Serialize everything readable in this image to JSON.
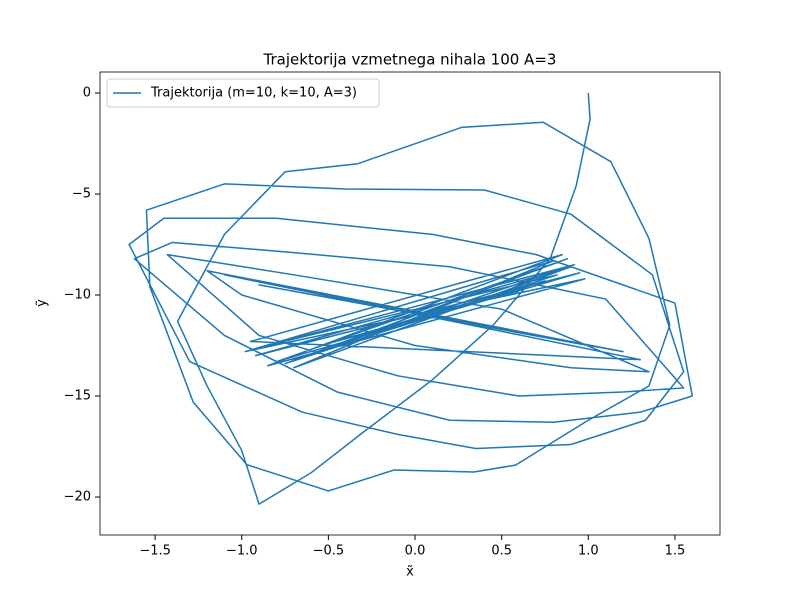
{
  "chart_data": {
    "type": "line",
    "title": "Trajektorija vzmetnega nihala 100 A=3",
    "xlabel": "x̃",
    "ylabel": "ỹ",
    "xlim": [
      -1.818,
      1.76
    ],
    "ylim": [
      -21.88,
      1.04
    ],
    "xticks": [
      {
        "value": -1.5,
        "label": "−1.5"
      },
      {
        "value": -1.0,
        "label": "−1.0"
      },
      {
        "value": -0.5,
        "label": "−0.5"
      },
      {
        "value": 0,
        "label": "0.0"
      },
      {
        "value": 0.5,
        "label": "0.5"
      },
      {
        "value": 1.0,
        "label": "1.0"
      },
      {
        "value": 1.5,
        "label": "1.5"
      }
    ],
    "yticks": [
      0,
      {
        "value": -5,
        "label": "−5"
      },
      {
        "value": -10,
        "label": "−10"
      },
      {
        "value": -15,
        "label": "−15"
      },
      {
        "value": -20,
        "label": "−20"
      }
    ],
    "legend": "upper left",
    "x": [
      1.0,
      1.01,
      0.93,
      0.78,
      0.45,
      0.1,
      -0.3,
      -0.6,
      -0.9,
      -1.0,
      -1.2,
      -1.37,
      -1.1,
      -0.75,
      -0.33,
      0.27,
      0.74,
      1.13,
      1.35,
      1.47,
      1.35,
      1.0,
      0.58,
      0.34,
      -0.12,
      -0.5,
      -0.97,
      -1.28,
      -1.53,
      -1.55,
      -1.1,
      -0.4,
      0.4,
      0.9,
      1.37,
      1.55,
      1.33,
      0.9,
      0.35,
      -0.1,
      -0.65,
      -1.3,
      -1.65,
      -1.45,
      -0.8,
      0.1,
      0.7,
      1.5,
      1.6,
      1.3,
      0.8,
      0.2,
      -0.45,
      -1.1,
      -1.62,
      -1.4,
      -0.7,
      0.2,
      1.1,
      1.55,
      1.2,
      0.6,
      -0.1,
      -0.9,
      -1.43,
      -0.7,
      0.5,
      1.35,
      0.9,
      0.0,
      -1.0,
      -1.2,
      1.2,
      -0.9,
      1.0,
      -1.1,
      1.3,
      -0.95,
      0.85,
      -0.85,
      0.98,
      -0.98,
      0.8,
      -0.7,
      0.9,
      -0.92,
      0.95,
      -0.8,
      0.88,
      -0.75,
      0.82,
      -0.9,
      0.92,
      -0.7,
      0.75,
      -0.5,
      0.6
    ],
    "series": [
      {
        "name": "Trajektorija (m=10, k=10, A=3)",
        "color": "#1f77b4",
        "values": [
          0,
          -1.3,
          -4.6,
          -8.2,
          -11.5,
          -14.2,
          -16.8,
          -18.8,
          -20.35,
          -17.7,
          -14.5,
          -11.3,
          -7.0,
          -3.9,
          -3.5,
          -1.7,
          -1.45,
          -3.4,
          -7.2,
          -11.5,
          -14.5,
          -16.2,
          -18.42,
          -18.76,
          -18.66,
          -19.7,
          -18.4,
          -15.3,
          -9.6,
          -5.8,
          -4.5,
          -4.75,
          -4.8,
          -6.0,
          -9.0,
          -13.8,
          -16.2,
          -17.4,
          -17.6,
          -16.9,
          -15.8,
          -13.3,
          -7.5,
          -6.2,
          -6.2,
          -7.0,
          -8.0,
          -10.4,
          -15.0,
          -15.8,
          -16.3,
          -16.2,
          -14.8,
          -12.0,
          -8.2,
          -7.4,
          -7.9,
          -8.6,
          -10.2,
          -14.6,
          -14.8,
          -15.0,
          -14.0,
          -12.0,
          -8.0,
          -9.0,
          -10.7,
          -13.8,
          -13.6,
          -12.5,
          -10.0,
          -8.8,
          -12.8,
          -9.5,
          -12.5,
          -9.0,
          -13.2,
          -12.3,
          -8.0,
          -13.5,
          -9.2,
          -12.8,
          -8.3,
          -13.6,
          -8.6,
          -13.0,
          -8.9,
          -13.3,
          -8.2,
          -13.4,
          -9.0,
          -12.6,
          -8.5,
          -13.2,
          -9.3,
          -12.4,
          -9.8
        ]
      }
    ]
  }
}
